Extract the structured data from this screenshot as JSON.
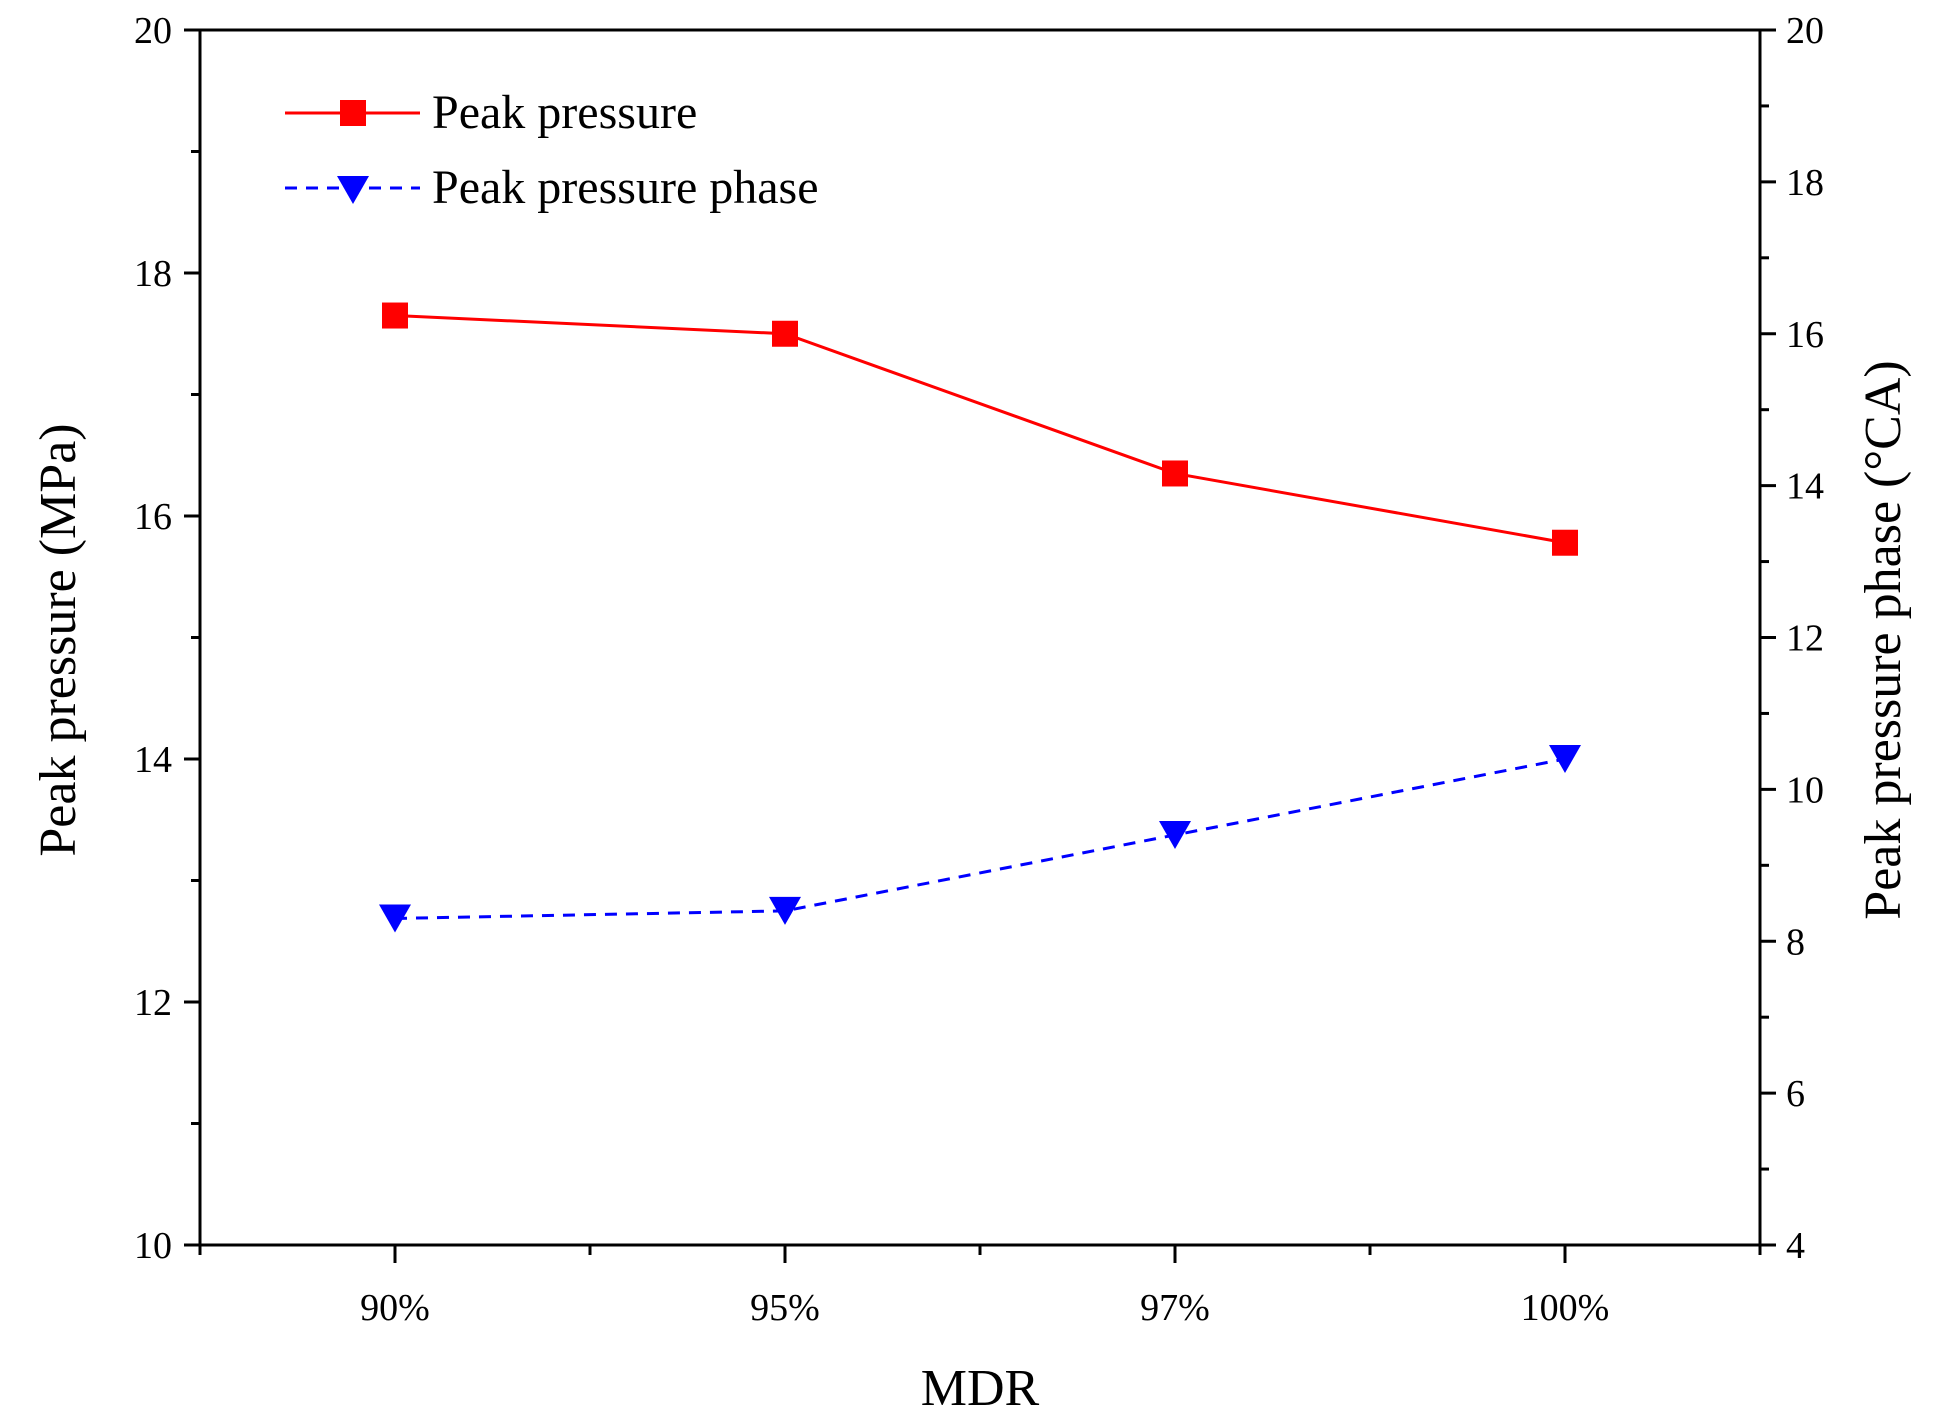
{
  "chart_data": {
    "type": "line",
    "categories": [
      "90%",
      "95%",
      "97%",
      "100%"
    ],
    "xlabel": "MDR",
    "ylabel_left": "Peak pressure (MPa)",
    "ylabel_right": "Peak pressure phase (°CA)",
    "ylim_left": [
      10,
      20
    ],
    "ylim_right": [
      4,
      20
    ],
    "yticks_left": [
      "10",
      "12",
      "14",
      "16",
      "18",
      "20"
    ],
    "yticks_right": [
      "4",
      "6",
      "8",
      "10",
      "12",
      "14",
      "16",
      "18",
      "20"
    ],
    "legend_position": "top-left",
    "series": [
      {
        "name": "Peak pressure",
        "axis": "left",
        "values": [
          17.65,
          17.5,
          16.35,
          15.78
        ],
        "color": "#ff0000",
        "marker": "square",
        "line": "solid"
      },
      {
        "name": "Peak pressure phase",
        "axis": "right",
        "values": [
          8.3,
          8.4,
          9.4,
          10.4
        ],
        "color": "#0000ff",
        "marker": "triangle-down",
        "line": "dashed"
      }
    ]
  }
}
